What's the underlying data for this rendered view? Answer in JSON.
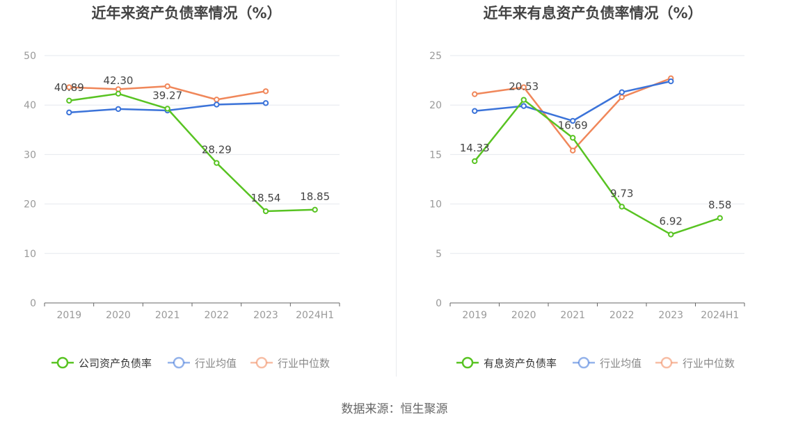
{
  "source_label": "数据来源：恒生聚源",
  "colors": {
    "company": "#58c322",
    "avg": "#3b73d9",
    "median": "#f0875a",
    "axis": "#666666",
    "grid": "#e6e8ee",
    "tick": "#999999"
  },
  "chart_data": [
    {
      "type": "line",
      "title": "近年来资产负债率情况（%）",
      "categories": [
        "2019",
        "2020",
        "2021",
        "2022",
        "2023",
        "2024H1"
      ],
      "ylim": [
        0,
        50
      ],
      "yticks": [
        0,
        10,
        20,
        30,
        40,
        50
      ],
      "grid": true,
      "legend_position": "bottom",
      "series": [
        {
          "name": "公司资产负债率",
          "color": "#58c322",
          "values": [
            40.89,
            42.3,
            39.27,
            28.29,
            18.54,
            18.85
          ],
          "labels": [
            "40.89",
            "42.30",
            "39.27",
            "28.29",
            "18.54",
            "18.85"
          ]
        },
        {
          "name": "行业均值",
          "color": "#3b73d9",
          "values": [
            38.5,
            39.2,
            38.9,
            40.1,
            40.4,
            null
          ]
        },
        {
          "name": "行业中位数",
          "color": "#f0875a",
          "values": [
            43.6,
            43.2,
            43.8,
            41.1,
            42.8,
            null
          ]
        }
      ]
    },
    {
      "type": "line",
      "title": "近年来有息资产负债率情况（%）",
      "categories": [
        "2019",
        "2020",
        "2021",
        "2022",
        "2023",
        "2024H1"
      ],
      "ylim": [
        0,
        25
      ],
      "yticks": [
        0,
        5,
        10,
        15,
        20,
        25
      ],
      "grid": true,
      "legend_position": "bottom",
      "series": [
        {
          "name": "有息资产负债率",
          "color": "#58c322",
          "values": [
            14.33,
            20.53,
            16.69,
            9.73,
            6.92,
            8.58
          ],
          "labels": [
            "14.33",
            "20.53",
            "16.69",
            "9.73",
            "6.92",
            "8.58"
          ]
        },
        {
          "name": "行业均值",
          "color": "#3b73d9",
          "values": [
            19.4,
            19.9,
            18.4,
            21.3,
            22.4,
            null
          ]
        },
        {
          "name": "行业中位数",
          "color": "#f0875a",
          "values": [
            21.1,
            21.8,
            15.4,
            20.8,
            22.7,
            null
          ]
        }
      ]
    }
  ]
}
